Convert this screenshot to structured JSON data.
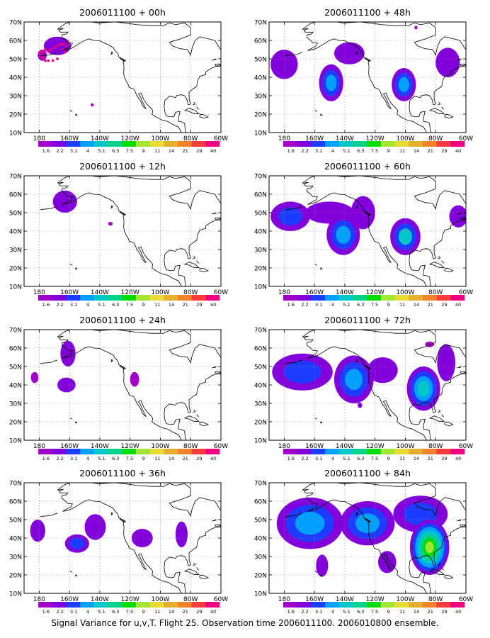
{
  "figure": {
    "caption": "Signal Variance for u,v,T. Flight 25. Observation time 2006011100. 2006010800 ensemble.",
    "panels": [
      {
        "title": "2006011100 + 00h",
        "forecast_hour": 0,
        "blobs": [
          {
            "lon": -168,
            "lat": 57,
            "rx": 9,
            "ry": 5,
            "levels": [
              1
            ]
          },
          {
            "lon": -178,
            "lat": 52,
            "rx": 3,
            "ry": 3,
            "levels": [
              0
            ]
          },
          {
            "lon": -145,
            "lat": 25,
            "rx": 1,
            "ry": 0.8,
            "levels": [
              0
            ]
          }
        ],
        "dots": [
          {
            "lon": -178,
            "lat": 54
          },
          {
            "lon": -176,
            "lat": 55
          },
          {
            "lon": -174,
            "lat": 54
          },
          {
            "lon": -172,
            "lat": 55
          },
          {
            "lon": -170,
            "lat": 56
          },
          {
            "lon": -168,
            "lat": 57
          },
          {
            "lon": -166,
            "lat": 58
          },
          {
            "lon": -164,
            "lat": 58
          },
          {
            "lon": -162,
            "lat": 57
          },
          {
            "lon": -178,
            "lat": 51
          },
          {
            "lon": -176,
            "lat": 49
          },
          {
            "lon": -174,
            "lat": 49
          },
          {
            "lon": -171,
            "lat": 49
          },
          {
            "lon": -168,
            "lat": 50
          },
          {
            "lon": -179,
            "lat": 53
          },
          {
            "lon": -163,
            "lat": 54
          },
          {
            "lon": -164,
            "lat": 55
          },
          {
            "lon": -161,
            "lat": 59
          }
        ]
      },
      {
        "title": "2006011100 + 12h",
        "forecast_hour": 12,
        "blobs": [
          {
            "lon": -163,
            "lat": 56,
            "rx": 8,
            "ry": 6,
            "levels": [
              1
            ]
          },
          {
            "lon": -133,
            "lat": 44,
            "rx": 1.5,
            "ry": 1,
            "levels": [
              0
            ]
          }
        ]
      },
      {
        "title": "2006011100 + 24h",
        "forecast_hour": 24,
        "blobs": [
          {
            "lon": -161,
            "lat": 57,
            "rx": 5,
            "ry": 7,
            "levels": [
              1
            ]
          },
          {
            "lon": -162,
            "lat": 40,
            "rx": 6,
            "ry": 4,
            "levels": [
              1
            ]
          },
          {
            "lon": -183,
            "lat": 44,
            "rx": 2.5,
            "ry": 3,
            "levels": [
              0
            ]
          },
          {
            "lon": -117,
            "lat": 43,
            "rx": 3,
            "ry": 4,
            "levels": [
              0
            ]
          }
        ]
      },
      {
        "title": "2006011100 + 36h",
        "forecast_hour": 36,
        "blobs": [
          {
            "lon": -181,
            "lat": 44,
            "rx": 5,
            "ry": 6,
            "levels": [
              1
            ]
          },
          {
            "lon": -155,
            "lat": 37,
            "rx": 8,
            "ry": 5,
            "levels": [
              1,
              2
            ]
          },
          {
            "lon": -143,
            "lat": 46,
            "rx": 7,
            "ry": 7,
            "levels": [
              1
            ]
          },
          {
            "lon": -112,
            "lat": 40,
            "rx": 7,
            "ry": 5,
            "levels": [
              1
            ]
          },
          {
            "lon": -86,
            "lat": 42,
            "rx": 4,
            "ry": 7,
            "levels": [
              1
            ]
          }
        ]
      },
      {
        "title": "2006011100 + 48h",
        "forecast_hour": 48,
        "blobs": [
          {
            "lon": -180,
            "lat": 47,
            "rx": 9,
            "ry": 8,
            "levels": [
              1
            ]
          },
          {
            "lon": -149,
            "lat": 37,
            "rx": 8,
            "ry": 10,
            "levels": [
              1,
              2,
              3
            ]
          },
          {
            "lon": -137,
            "lat": 53,
            "rx": 10,
            "ry": 6,
            "levels": [
              1
            ]
          },
          {
            "lon": -101,
            "lat": 36,
            "rx": 8,
            "ry": 9,
            "levels": [
              1,
              2,
              3
            ]
          },
          {
            "lon": -72,
            "lat": 48,
            "rx": 8,
            "ry": 8,
            "levels": [
              1
            ]
          },
          {
            "lon": -93,
            "lat": 67,
            "rx": 1,
            "ry": 1,
            "levels": [
              0
            ]
          }
        ]
      },
      {
        "title": "2006011100 + 60h",
        "forecast_hour": 60,
        "blobs": [
          {
            "lon": -176,
            "lat": 48,
            "rx": 13,
            "ry": 8,
            "levels": [
              1,
              2
            ]
          },
          {
            "lon": -150,
            "lat": 50,
            "rx": 16,
            "ry": 6,
            "levels": [
              1
            ]
          },
          {
            "lon": -141,
            "lat": 38,
            "rx": 11,
            "ry": 11,
            "levels": [
              1,
              2,
              3
            ]
          },
          {
            "lon": -128,
            "lat": 50,
            "rx": 8,
            "ry": 9,
            "levels": [
              1
            ]
          },
          {
            "lon": -100,
            "lat": 37,
            "rx": 10,
            "ry": 10,
            "levels": [
              1,
              2,
              4
            ]
          },
          {
            "lon": -65,
            "lat": 48,
            "rx": 6,
            "ry": 6,
            "levels": [
              1
            ]
          }
        ]
      },
      {
        "title": "2006011100 + 72h",
        "forecast_hour": 72,
        "blobs": [
          {
            "lon": -168,
            "lat": 47,
            "rx": 20,
            "ry": 10,
            "levels": [
              1,
              2
            ]
          },
          {
            "lon": -134,
            "lat": 43,
            "rx": 13,
            "ry": 13,
            "levels": [
              1,
              2,
              3
            ]
          },
          {
            "lon": -115,
            "lat": 48,
            "rx": 10,
            "ry": 7,
            "levels": [
              1
            ]
          },
          {
            "lon": -88,
            "lat": 38,
            "rx": 11,
            "ry": 12,
            "levels": [
              1,
              2,
              3,
              4
            ]
          },
          {
            "lon": -73,
            "lat": 52,
            "rx": 6,
            "ry": 10,
            "levels": [
              1
            ]
          },
          {
            "lon": -84,
            "lat": 62,
            "rx": 3,
            "ry": 1.5,
            "levels": [
              0
            ]
          },
          {
            "lon": -130,
            "lat": 29,
            "rx": 1.5,
            "ry": 1.5,
            "levels": [
              1
            ]
          }
        ]
      },
      {
        "title": "2006011100 + 84h",
        "forecast_hour": 84,
        "blobs": [
          {
            "lon": -163,
            "lat": 48,
            "rx": 22,
            "ry": 14,
            "levels": [
              1,
              2,
              3
            ]
          },
          {
            "lon": -125,
            "lat": 48,
            "rx": 18,
            "ry": 12,
            "levels": [
              1,
              2,
              3
            ]
          },
          {
            "lon": -90,
            "lat": 53,
            "rx": 18,
            "ry": 10,
            "levels": [
              1,
              2
            ]
          },
          {
            "lon": -84,
            "lat": 35,
            "rx": 13,
            "ry": 15,
            "levels": [
              1,
              2,
              3,
              4,
              5,
              6,
              7
            ]
          },
          {
            "lon": -155,
            "lat": 25,
            "rx": 4,
            "ry": 6,
            "levels": [
              1
            ]
          },
          {
            "lon": -112,
            "lat": 27,
            "rx": 6,
            "ry": 6,
            "levels": [
              1
            ]
          }
        ]
      }
    ],
    "axes": {
      "lon_range": [
        -190,
        -60
      ],
      "lat_range": [
        10,
        70
      ],
      "x_ticks": [
        "180",
        "160W",
        "140W",
        "120W",
        "100W",
        "80W",
        "60W"
      ],
      "x_tick_values": [
        -180,
        -160,
        -140,
        -120,
        -100,
        -80,
        -60
      ],
      "y_ticks": [
        "10N",
        "20N",
        "30N",
        "40N",
        "50N",
        "60N",
        "70N"
      ],
      "y_tick_values": [
        10,
        20,
        30,
        40,
        50,
        60,
        70
      ],
      "grid": true
    },
    "colorbar": {
      "labels": [
        "1.6",
        "2.2",
        "3.1",
        "4",
        "5.1",
        "6.3",
        "7.5",
        "9",
        "11",
        "14",
        "21",
        "29",
        "40"
      ],
      "colors": [
        "#a000c8",
        "#8200dc",
        "#1e3cff",
        "#00a0ff",
        "#00c8c8",
        "#00d28c",
        "#00dc00",
        "#a0e632",
        "#e6dc32",
        "#e6af2d",
        "#f08228",
        "#fa3c3c",
        "#f00082"
      ]
    },
    "level_colors": [
      "#a000c8",
      "#8200dc",
      "#1e3cff",
      "#00a0ff",
      "#00c8c8",
      "#00d28c",
      "#00dc00",
      "#a0e632"
    ],
    "dot_color": "#f00082"
  }
}
